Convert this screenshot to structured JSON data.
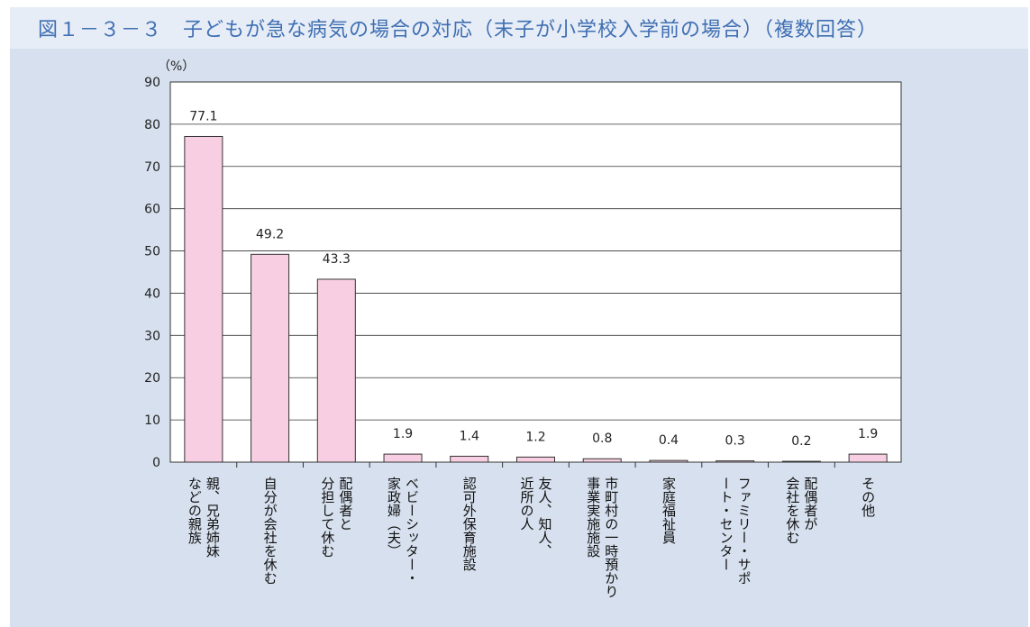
{
  "title": "図１－３－３　子どもが急な病気の場合の対応（末子が小学校入学前の場合）（複数回答）",
  "colors": {
    "bar_fill": "#f8cfe2",
    "bar_stroke": "#333333",
    "title": "#3f6fb3",
    "background": "#d6e0ee"
  },
  "chart_data": {
    "type": "bar",
    "title": "図１－３－３　子どもが急な病気の場合の対応（末子が小学校入学前の場合）（複数回答）",
    "ylabel": "（%）",
    "ylim": [
      0,
      90
    ],
    "yticks": [
      0,
      10,
      20,
      30,
      40,
      50,
      60,
      70,
      80,
      90
    ],
    "grid": true,
    "categories": [
      [
        "親、兄弟姉妹",
        "などの親族"
      ],
      [
        "自分が会社を休む"
      ],
      [
        "配偶者と",
        "分担して休む"
      ],
      [
        "ベビーシッター・",
        "家政婦（夫）"
      ],
      [
        "認可外保育施設"
      ],
      [
        "友人、知人、",
        "近所の人"
      ],
      [
        "市町村の一時預かり",
        "事業実施施設"
      ],
      [
        "家庭福祉員"
      ],
      [
        "ファミリー・サポ",
        "ート・センター"
      ],
      [
        "配偶者が",
        "会社を休む"
      ],
      [
        "その他"
      ]
    ],
    "values": [
      77.1,
      49.2,
      43.3,
      1.9,
      1.4,
      1.2,
      0.8,
      0.4,
      0.3,
      0.2,
      1.9
    ],
    "value_labels": [
      "77.1",
      "49.2",
      "43.3",
      "1.9",
      "1.4",
      "1.2",
      "0.8",
      "0.4",
      "0.3",
      "0.2",
      "1.9"
    ]
  }
}
